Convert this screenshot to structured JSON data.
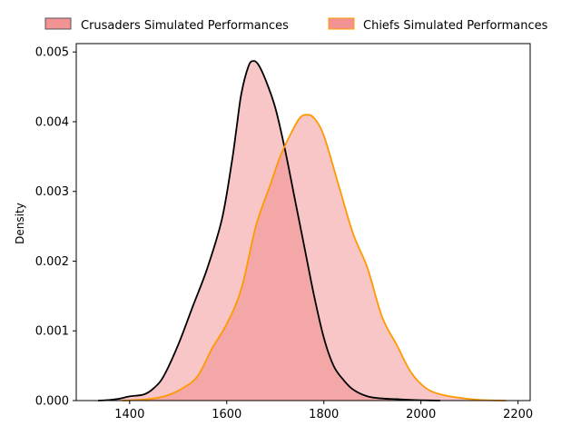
{
  "chart_data": {
    "type": "area",
    "title": "",
    "xlabel": "",
    "ylabel": "Density",
    "xlim": [
      1290,
      2225
    ],
    "ylim": [
      0,
      0.00512
    ],
    "grid": false,
    "legend_position": "top-center, outside",
    "x_ticks": [
      1400,
      1600,
      1800,
      2000,
      2200
    ],
    "x_tick_labels": [
      "1400",
      "1600",
      "1800",
      "2000",
      "2200"
    ],
    "y_ticks": [
      0,
      0.001,
      0.002,
      0.003,
      0.004,
      0.005
    ],
    "y_tick_labels": [
      "0.000",
      "0.001",
      "0.002",
      "0.003",
      "0.004",
      "0.005"
    ],
    "series": [
      {
        "name": "Crusaders Simulated Performances",
        "fill": "#f08080",
        "line": "#000000",
        "x": [
          1335,
          1360,
          1380,
          1400,
          1430,
          1450,
          1470,
          1500,
          1530,
          1560,
          1590,
          1610,
          1620,
          1630,
          1645,
          1655,
          1665,
          1680,
          1700,
          1720,
          1740,
          1760,
          1780,
          1800,
          1820,
          1840,
          1860,
          1890,
          1920,
          1950,
          1980,
          2000,
          2040
        ],
        "values": [
          0.0,
          1e-05,
          3e-05,
          6e-05,
          9e-05,
          0.00018,
          0.00035,
          0.0008,
          0.00135,
          0.0019,
          0.0026,
          0.0034,
          0.0039,
          0.0044,
          0.0048,
          0.00487,
          0.00482,
          0.0046,
          0.0042,
          0.0036,
          0.0029,
          0.0022,
          0.0015,
          0.0009,
          0.0005,
          0.0003,
          0.00016,
          6e-05,
          3e-05,
          2e-05,
          1e-05,
          5e-06,
          0.0
        ]
      },
      {
        "name": "Chiefs Simulated Performances",
        "fill": "#f08080",
        "line": "#ff9900",
        "x": [
          1385,
          1420,
          1450,
          1480,
          1510,
          1540,
          1570,
          1600,
          1630,
          1660,
          1690,
          1710,
          1730,
          1750,
          1765,
          1780,
          1800,
          1830,
          1860,
          1890,
          1920,
          1950,
          1980,
          2010,
          2040,
          2080,
          2120,
          2175
        ],
        "values": [
          0.0,
          1e-05,
          3e-05,
          8e-05,
          0.00018,
          0.00035,
          0.00075,
          0.0011,
          0.0016,
          0.0025,
          0.0031,
          0.0035,
          0.0038,
          0.00405,
          0.0041,
          0.00405,
          0.0038,
          0.0031,
          0.0024,
          0.0019,
          0.0012,
          0.0008,
          0.0004,
          0.00018,
          9e-05,
          4e-05,
          1e-05,
          0.0
        ]
      }
    ]
  }
}
